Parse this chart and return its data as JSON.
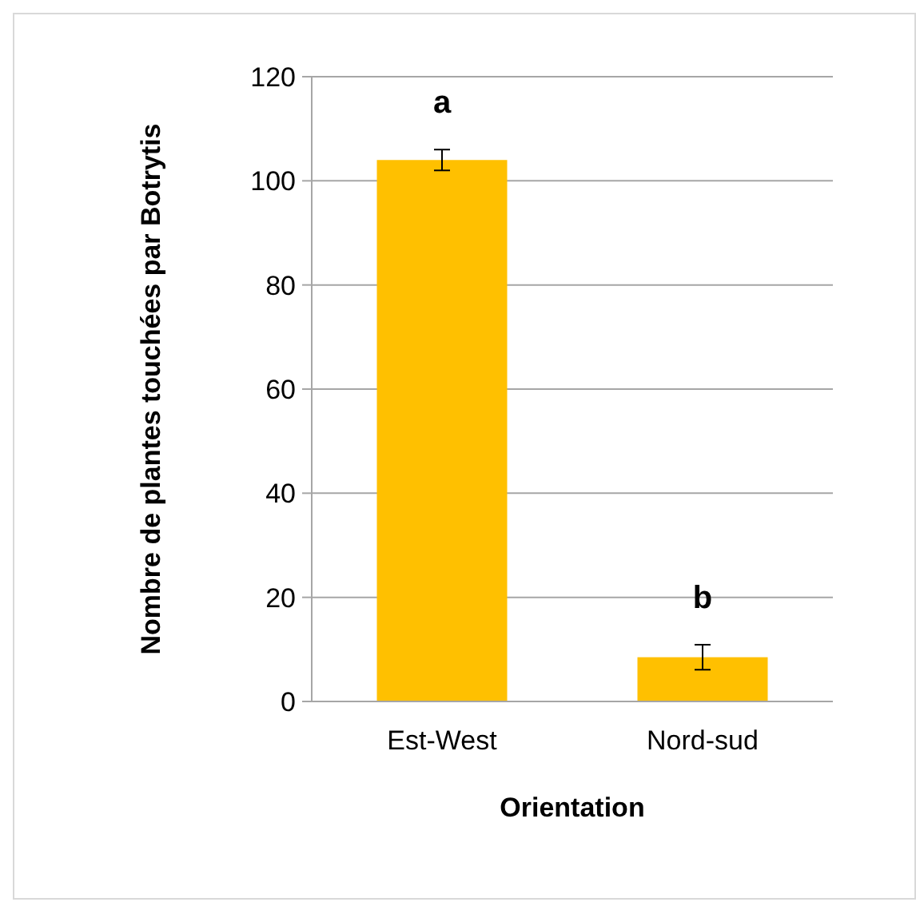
{
  "chart_data": {
    "type": "bar",
    "xlabel": "Orientation",
    "ylabel": "Nombre de plantes touchées par Botrytis",
    "categories": [
      "Est-West",
      "Nord-sud"
    ],
    "values": [
      104,
      8.5
    ],
    "errors": [
      2,
      2.4
    ],
    "color": "#ffc000",
    "ylim": [
      0,
      120
    ],
    "yticks": [
      0,
      20,
      40,
      60,
      80,
      100,
      120
    ],
    "grid": "y",
    "annotations": [
      "a",
      "b"
    ]
  }
}
